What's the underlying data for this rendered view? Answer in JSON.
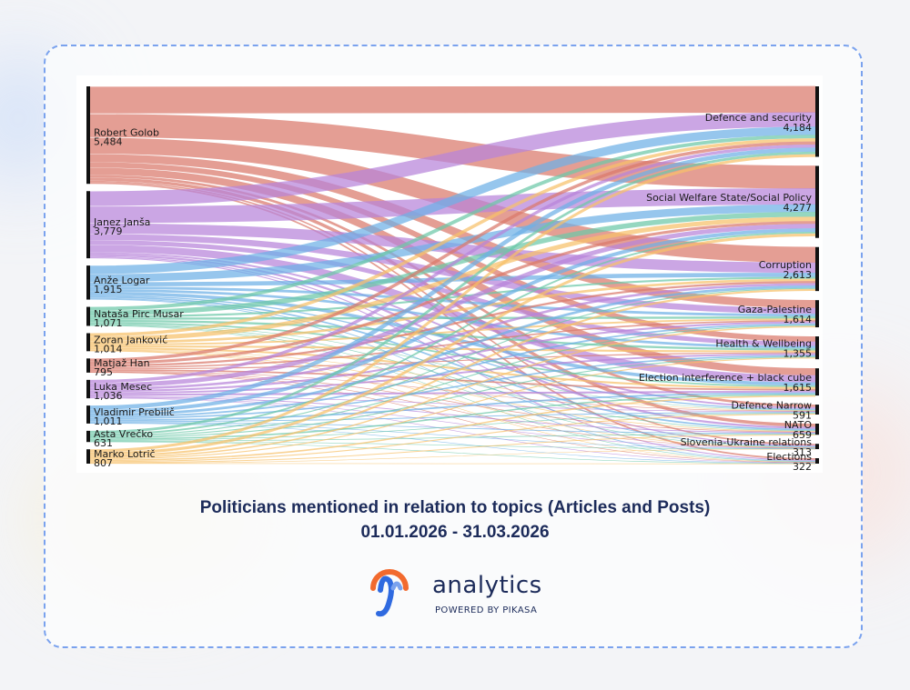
{
  "header": {
    "title": "Politicians mentioned in relation to topics (Articles and Posts)",
    "date_range": "01.01.2026 - 31.03.2026"
  },
  "brand": {
    "name": "analytics",
    "tagline": "POWERED BY PIKASA",
    "logo_icon": "pikasa-swirl-icon",
    "colors": {
      "navy": "#1c2b5a",
      "orange": "#f26a2e",
      "blue": "#2f6ae0",
      "accent_border": "#7aa2ee"
    }
  },
  "chart_data": {
    "type": "sankey",
    "sources": [
      {
        "name": "Robert Golob",
        "value": "5,484",
        "color": "#d9786b"
      },
      {
        "name": "Janez Janša",
        "value": "3,779",
        "color": "#b784d9"
      },
      {
        "name": "Anže Logar",
        "value": "1,915",
        "color": "#6eb0e6"
      },
      {
        "name": "Nataša Pirc Musar",
        "value": "1,071",
        "color": "#6cc8a7"
      },
      {
        "name": "Zoran Janković",
        "value": "1,014",
        "color": "#f6c069"
      },
      {
        "name": "Matjaž Han",
        "value": "795",
        "color": "#d9786b"
      },
      {
        "name": "Luka Mesec",
        "value": "1,036",
        "color": "#b784d9"
      },
      {
        "name": "Vladimir Prebilič",
        "value": "1,011",
        "color": "#6eb0e6"
      },
      {
        "name": "Asta Vrečko",
        "value": "631",
        "color": "#6cc8a7"
      },
      {
        "name": "Marko Lotrič",
        "value": "807",
        "color": "#f6c069"
      }
    ],
    "targets": [
      {
        "name": "Defence and security",
        "value": "4,184"
      },
      {
        "name": "Social Welfare State/Social Policy",
        "value": "4,277"
      },
      {
        "name": "Corruption",
        "value": "2,613"
      },
      {
        "name": "Gaza-Palestine",
        "value": "1,614"
      },
      {
        "name": "Health & Wellbeing",
        "value": "1,355"
      },
      {
        "name": "Election interference + black cube",
        "value": "1,615"
      },
      {
        "name": "Defence Narrow",
        "value": "591"
      },
      {
        "name": "NATO",
        "value": "659"
      },
      {
        "name": "Slovenia-Ukraine relations",
        "value": "313"
      },
      {
        "name": "Elections",
        "value": "322"
      }
    ],
    "link_matrix": [
      [
        1500,
        1300,
        900,
        450,
        300,
        400,
        140,
        180,
        80,
        90
      ],
      [
        850,
        950,
        600,
        350,
        260,
        420,
        100,
        120,
        60,
        60
      ],
      [
        480,
        440,
        240,
        150,
        140,
        190,
        70,
        90,
        50,
        45
      ],
      [
        200,
        280,
        110,
        120,
        120,
        90,
        30,
        40,
        30,
        25
      ],
      [
        190,
        260,
        140,
        100,
        110,
        110,
        30,
        40,
        15,
        20
      ],
      [
        180,
        160,
        120,
        80,
        60,
        90,
        25,
        35,
        10,
        15
      ],
      [
        180,
        260,
        140,
        110,
        100,
        110,
        40,
        50,
        20,
        25
      ],
      [
        230,
        200,
        140,
        90,
        80,
        90,
        50,
        40,
        20,
        20
      ],
      [
        150,
        100,
        60,
        60,
        60,
        80,
        40,
        40,
        20,
        20
      ],
      [
        160,
        160,
        110,
        80,
        60,
        80,
        60,
        50,
        15,
        17
      ]
    ]
  }
}
